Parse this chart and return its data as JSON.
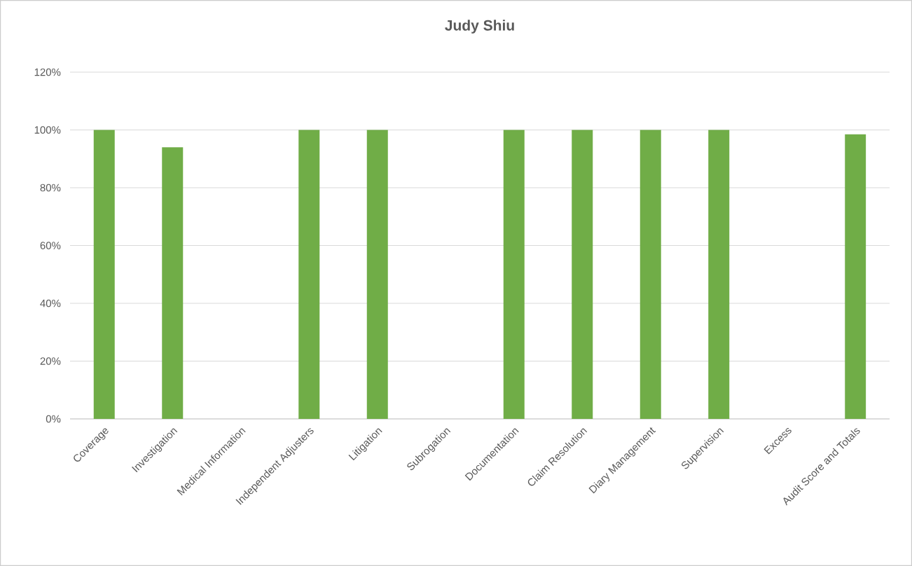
{
  "chart_data": {
    "type": "bar",
    "title": "Judy Shiu",
    "categories": [
      "Coverage",
      "Investigation",
      "Medical Information",
      "Independent Adjusters",
      "Litigation",
      "Subrogation",
      "Documentation",
      "Claim Resolution",
      "Diary Management",
      "Supervision",
      "Excess",
      "Audit Score and Totals"
    ],
    "values": [
      100,
      94,
      null,
      100,
      100,
      null,
      100,
      100,
      100,
      100,
      null,
      98.5
    ],
    "color": "#70ad47",
    "ylim": [
      0,
      120
    ],
    "yticks": [
      {
        "value": 0,
        "label": "0%"
      },
      {
        "value": 20,
        "label": "20%"
      },
      {
        "value": 40,
        "label": "40%"
      },
      {
        "value": 60,
        "label": "60%"
      },
      {
        "value": 80,
        "label": "80%"
      },
      {
        "value": 100,
        "label": "100%"
      },
      {
        "value": 120,
        "label": "120%"
      }
    ],
    "grid": "y"
  }
}
